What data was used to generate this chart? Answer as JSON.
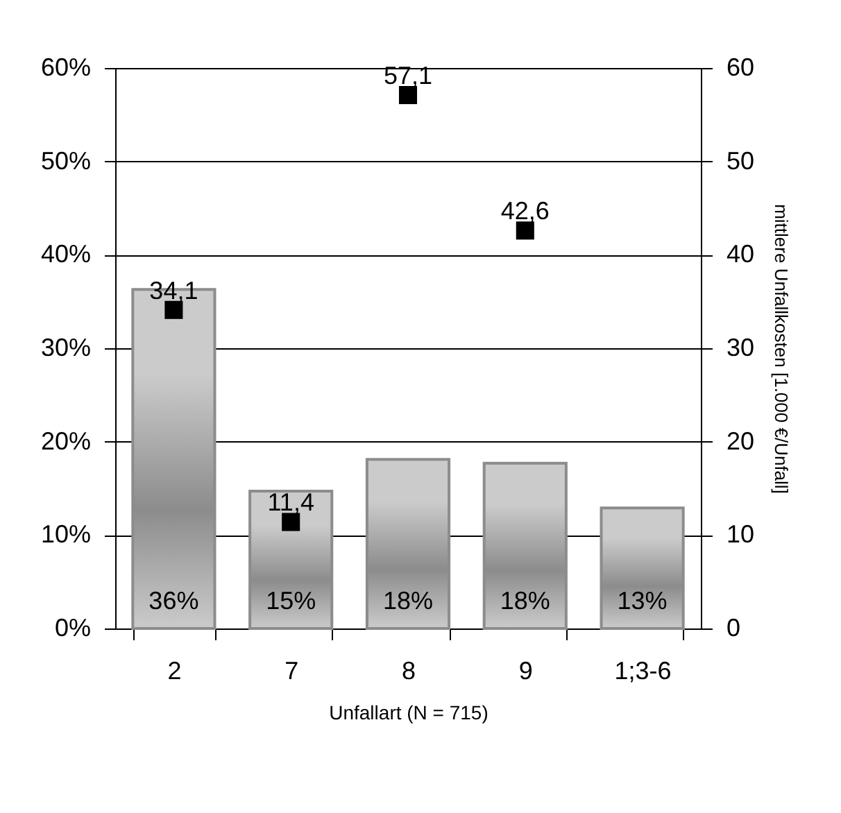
{
  "chart_data": {
    "type": "bar",
    "xlabel": "Unfallart (N = 715)",
    "y2label": "mittlere Unfallkosten [1.000 €/Unfall]",
    "categories": [
      "2",
      "7",
      "8",
      "9",
      "1;3-6"
    ],
    "series": [
      {
        "color": "#8c8c8c",
        "values": [
          36.3,
          14.7,
          18.1,
          17.7,
          12.9
        ],
        "value_labels": [
          "36%",
          "15%",
          "18%",
          "18%",
          "13%"
        ]
      },
      {
        "type": "scatter",
        "axis": "y2",
        "color": "#000000",
        "values": [
          34.1,
          11.4,
          57.1,
          42.6,
          null
        ],
        "value_labels": [
          "34,1",
          "11,4",
          "57,1",
          "42,6",
          null
        ]
      }
    ],
    "ylim": [
      0,
      60
    ],
    "yticks": [
      {
        "value": 0,
        "label": "0%"
      },
      {
        "value": 10,
        "label": "10%"
      },
      {
        "value": 20,
        "label": "20%"
      },
      {
        "value": 30,
        "label": "30%"
      },
      {
        "value": 40,
        "label": "40%"
      },
      {
        "value": 50,
        "label": "50%"
      },
      {
        "value": 60,
        "label": "60%"
      }
    ],
    "marker": "square",
    "y2lim": [
      0,
      60
    ],
    "y2ticks": [
      0,
      10,
      20,
      30,
      40,
      50,
      60
    ],
    "grid": "y"
  }
}
